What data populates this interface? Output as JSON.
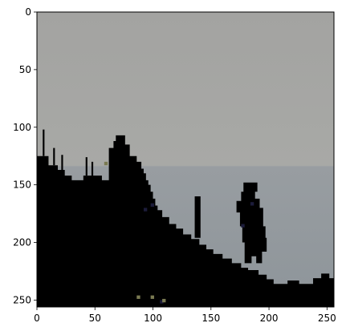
{
  "chart_data": {
    "type": "image",
    "title": "",
    "xlabel": "",
    "ylabel": "",
    "xlim": [
      0,
      256
    ],
    "ylim": [
      256,
      0
    ],
    "grid": false,
    "x_ticks": [
      0,
      50,
      100,
      150,
      200,
      250
    ],
    "y_ticks": [
      0,
      50,
      100,
      150,
      200,
      250
    ],
    "x_tick_labels": [
      "0",
      "50",
      "100",
      "150",
      "200",
      "250"
    ],
    "y_tick_labels": [
      "0",
      "50",
      "100",
      "150",
      "200",
      "250"
    ],
    "image": {
      "description_colors": {
        "sky": "#a3a3a1",
        "sky_low": "#a8a9a6",
        "sea": "#8e959a",
        "silhouette": "#000000",
        "speck_dark_blue": "#1c1c3a",
        "speck_olive": "#7a7a52"
      }
    }
  }
}
